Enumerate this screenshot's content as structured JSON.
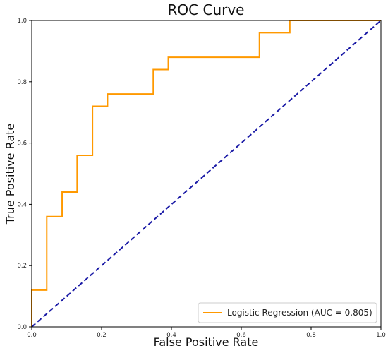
{
  "chart_data": {
    "type": "line",
    "title": "ROC Curve",
    "xlabel": "False Positive Rate",
    "ylabel": "True Positive Rate",
    "xlim": [
      0.0,
      1.0
    ],
    "ylim": [
      0.0,
      1.0
    ],
    "xticks": [
      "0.0",
      "0.2",
      "0.4",
      "0.6",
      "0.8",
      "1.0"
    ],
    "yticks": [
      "0.0",
      "0.2",
      "0.4",
      "0.6",
      "0.8",
      "1.0"
    ],
    "grid": false,
    "legend_position": "lower-right",
    "series": [
      {
        "name": "Logistic Regression (AUC = 0.805)",
        "color": "#ff9900",
        "style": "solid",
        "x": [
          0.0,
          0.0,
          0.043,
          0.043,
          0.087,
          0.087,
          0.13,
          0.13,
          0.174,
          0.174,
          0.217,
          0.217,
          0.348,
          0.348,
          0.391,
          0.391,
          0.652,
          0.652,
          0.739,
          0.739,
          1.0
        ],
        "y": [
          0.0,
          0.12,
          0.12,
          0.36,
          0.36,
          0.44,
          0.44,
          0.56,
          0.56,
          0.72,
          0.72,
          0.76,
          0.76,
          0.84,
          0.84,
          0.88,
          0.88,
          0.96,
          0.96,
          1.0,
          1.0
        ]
      },
      {
        "name": "",
        "color": "#1a1aa6",
        "style": "dashed",
        "x": [
          0.0,
          1.0
        ],
        "y": [
          0.0,
          1.0
        ]
      }
    ]
  }
}
